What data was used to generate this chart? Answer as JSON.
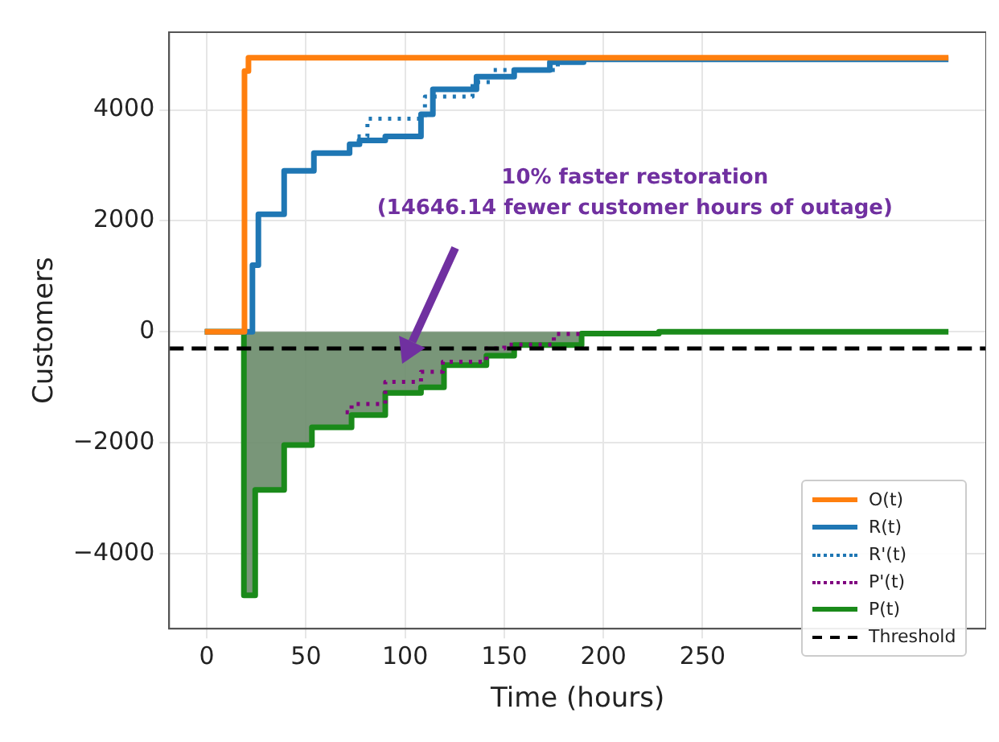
{
  "chart_data": {
    "type": "step",
    "xlabel": "Time (hours)",
    "ylabel": "Customers",
    "xlim": [
      -19,
      393
    ],
    "xticks": [
      0,
      50,
      100,
      150,
      200,
      250
    ],
    "ylim": [
      -5350,
      5400
    ],
    "yticks": [
      -4000,
      -2000,
      0,
      2000,
      4000
    ],
    "grid": true,
    "legend": "bottom right",
    "series": [
      {
        "name": "O(t)",
        "color": "#ff7f0e",
        "line_style": "solid",
        "x": [
          -1,
          17,
          19,
          21,
          374
        ],
        "values": [
          0,
          0,
          4700,
          4940,
          4940
        ]
      },
      {
        "name": "R(t)",
        "color": "#1f77b4",
        "line_style": "solid",
        "x": [
          -1,
          20,
          23,
          26,
          39,
          54,
          72,
          77,
          90,
          108,
          114,
          136,
          155,
          173,
          190,
          374
        ],
        "values": [
          0,
          0,
          1200,
          2120,
          2900,
          3220,
          3380,
          3450,
          3520,
          3920,
          4370,
          4600,
          4720,
          4860,
          4910,
          4910
        ]
      },
      {
        "name": "R'(t)",
        "color": "#1f77b4",
        "line_style": "dotted",
        "x": [
          76,
          81,
          105,
          110,
          130,
          134,
          144,
          170,
          177
        ],
        "values": [
          3520,
          3840,
          3840,
          4240,
          4240,
          4500,
          4720,
          4720,
          4880
        ]
      },
      {
        "name": "P'(t)",
        "color": "#800080",
        "line_style": "dotted",
        "x": [
          70,
          73,
          90,
          108,
          119,
          141,
          150,
          175,
          188
        ],
        "values": [
          -1450,
          -1300,
          -900,
          -720,
          -540,
          -300,
          -230,
          -40,
          -10
        ]
      },
      {
        "name": "P(t)",
        "type": "area",
        "color": "#1a8a1a",
        "line_style": "solid",
        "x": [
          -1,
          18.7,
          18.7,
          24.4,
          24.4,
          39,
          39,
          53,
          53,
          73,
          73,
          90,
          90,
          108,
          108,
          119.6,
          119.6,
          141,
          141,
          155,
          155,
          189,
          189,
          228,
          228,
          374
        ],
        "values": [
          0,
          0,
          -4750,
          -4750,
          -2850,
          -2850,
          -2040,
          -2040,
          -1720,
          -1720,
          -1500,
          -1500,
          -1100,
          -1100,
          -1000,
          -1000,
          -600,
          -600,
          -430,
          -430,
          -240,
          -240,
          -30,
          -30,
          0,
          0
        ]
      }
    ],
    "ref_lines": [
      {
        "axis": "y",
        "value": -300,
        "label": "Threshold",
        "color": "#000000",
        "line_style": "dashed"
      }
    ],
    "annotations": [
      "10% faster restoration\n(14646.14 fewer customer hours of outage)"
    ]
  }
}
